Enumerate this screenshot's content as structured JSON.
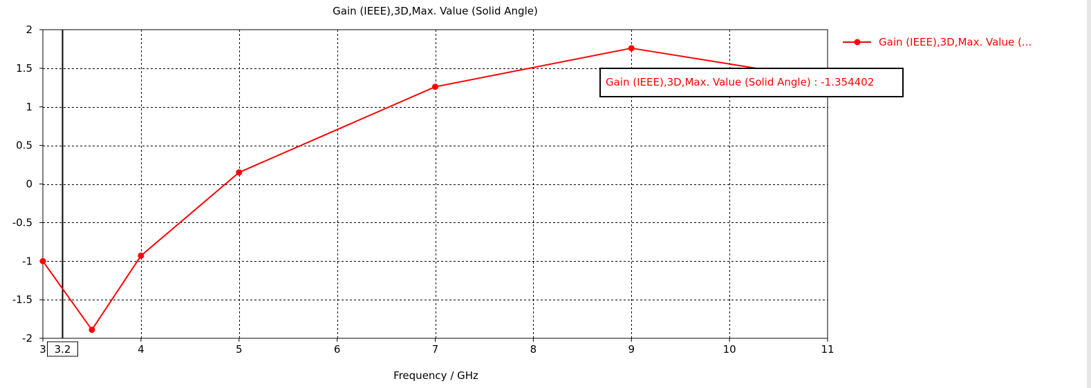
{
  "chart_data": {
    "type": "line",
    "title": "Gain (IEEE),3D,Max. Value (Solid Angle)",
    "xlabel": "Frequency / GHz",
    "ylabel": "",
    "xlim": [
      3,
      11
    ],
    "ylim": [
      -2,
      2
    ],
    "x_ticks": [
      "3",
      "4",
      "5",
      "6",
      "7",
      "8",
      "9",
      "10",
      "11"
    ],
    "y_ticks": [
      "2",
      "1.5",
      "1",
      "0.5",
      "0",
      "-0.5",
      "-1",
      "-1.5",
      "-2"
    ],
    "grid": true,
    "legend_position": "top-right outside",
    "series": [
      {
        "name": "Gain (IEEE),3D,Max. Value (...",
        "color": "#ff0000",
        "x": [
          3,
          3.5,
          4,
          5,
          7,
          9,
          11
        ],
        "y": [
          -1.0,
          -1.89,
          -0.93,
          0.15,
          1.26,
          1.76,
          1.35
        ]
      }
    ],
    "marker": {
      "x": 3.2,
      "label": "3.2",
      "color": "#000000"
    },
    "tooltip": {
      "text": "Gain (IEEE),3D,Max. Value (Solid Angle) : -1.354402",
      "color": "#ff0000",
      "border_color": "#000000"
    }
  },
  "colors": {
    "background": "#ffffff",
    "grid": "#000000",
    "series": "#ff0000",
    "right_edge": "#e6e6e6"
  }
}
